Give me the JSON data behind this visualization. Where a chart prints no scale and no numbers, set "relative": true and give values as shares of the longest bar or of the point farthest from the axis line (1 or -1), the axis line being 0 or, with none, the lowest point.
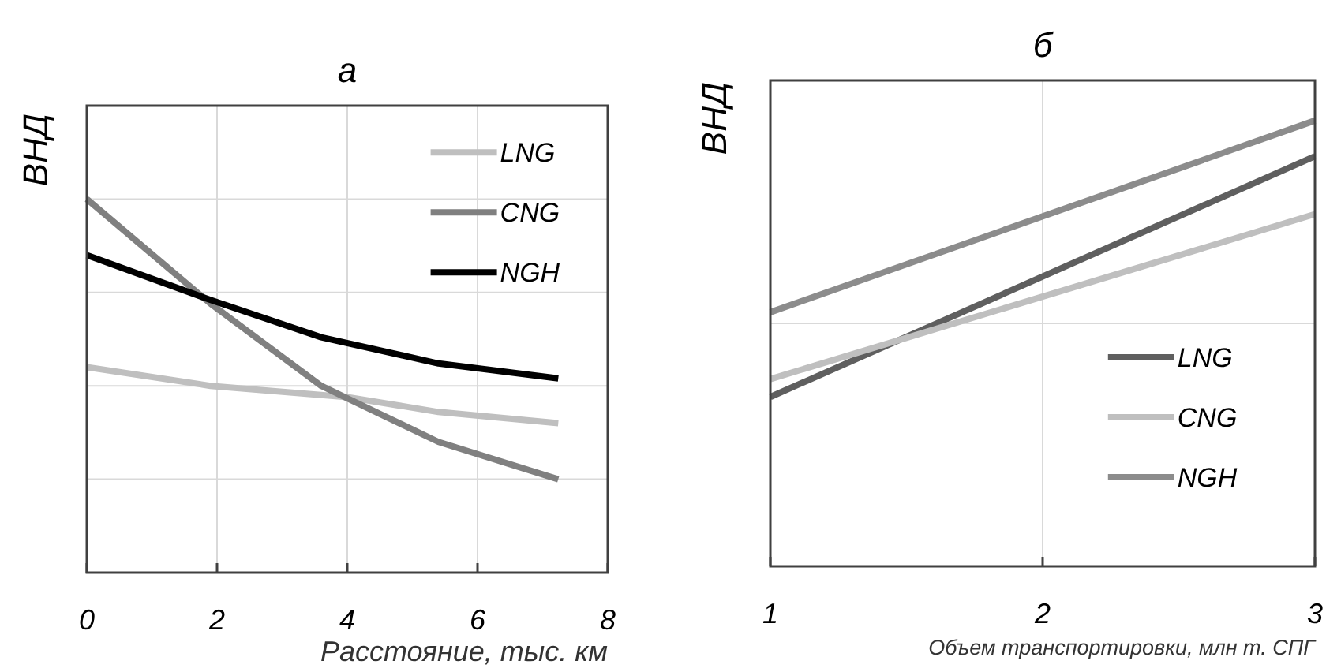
{
  "chart_data": [
    {
      "type": "line",
      "title": "а",
      "xlabel": "Расстояние, тыс. км",
      "ylabel": "ВНД",
      "relative": true,
      "xlim": [
        0,
        8
      ],
      "xticks": [
        0,
        2,
        4,
        6,
        8
      ],
      "grid": true,
      "legend": "top right",
      "line_style": "solid",
      "series": [
        {
          "name": "LNG",
          "color": "#bfbfbf",
          "x": [
            0,
            1.9,
            4,
            5.4,
            7.24
          ],
          "values": [
            0.55,
            0.5,
            0.47,
            0.43,
            0.4
          ]
        },
        {
          "name": "CNG",
          "color": "#808080",
          "x": [
            0,
            1.9,
            3.6,
            5.4,
            7.24
          ],
          "values": [
            1,
            0.72,
            0.5,
            0.35,
            0.25
          ]
        },
        {
          "name": "NGH",
          "color": "#000000",
          "x": [
            0,
            1.9,
            3.6,
            5.4,
            7.24
          ],
          "values": [
            0.85,
            0.73,
            0.63,
            0.56,
            0.52
          ]
        }
      ]
    },
    {
      "type": "line",
      "title": "б",
      "xlabel": "Объем транспортировки, млн т. СПГ",
      "ylabel": "ВНД",
      "relative": true,
      "xlim": [
        1,
        3
      ],
      "xticks": [
        1,
        2,
        3
      ],
      "grid": true,
      "legend": "right",
      "line_style": "solid",
      "series": [
        {
          "name": "LNG",
          "color": "#5f5f5f",
          "x": [
            1,
            3
          ],
          "values": [
            0.38,
            0.92
          ]
        },
        {
          "name": "CNG",
          "color": "#bfbfbf",
          "x": [
            1,
            3
          ],
          "values": [
            0.42,
            0.79
          ]
        },
        {
          "name": "NGH",
          "color": "#8c8c8c",
          "x": [
            1,
            3
          ],
          "values": [
            0.57,
            1
          ]
        }
      ]
    }
  ]
}
